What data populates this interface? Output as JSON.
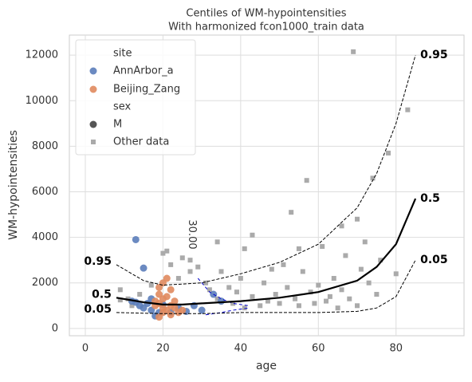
{
  "chart_data": {
    "type": "scatter",
    "title": "Centiles of WM-hypointensities",
    "subtitle": "With harmonized fcon1000_train data",
    "x_label": "age",
    "y_label": "WM-hypointensities",
    "xlim": [
      -4.1,
      97.5
    ],
    "ylim": [
      -320,
      12880
    ],
    "xticks": [
      0,
      20,
      40,
      60,
      80
    ],
    "yticks": [
      0,
      2000,
      4000,
      6000,
      8000,
      10000,
      12000
    ],
    "grid": true,
    "legend": {
      "position": "upper left",
      "site_title": "site",
      "sex_title": "sex",
      "sex_item": "M",
      "sex_color": "#555555"
    },
    "series": [
      {
        "name": "Other data",
        "color": "#aaaaaa",
        "marker": "square",
        "x": [
          9,
          9,
          11,
          12,
          14,
          17,
          20,
          21,
          22,
          24,
          25,
          27,
          27,
          29,
          31,
          32,
          34,
          34,
          35,
          37,
          38,
          39,
          40,
          41,
          41,
          43,
          43,
          45,
          46,
          47,
          48,
          49,
          50,
          51,
          52,
          53,
          54,
          55,
          56,
          57,
          58,
          59,
          60,
          61,
          62,
          63,
          64,
          65,
          66,
          67,
          68,
          69,
          70,
          70,
          71,
          72,
          73,
          74,
          75,
          76,
          78,
          80,
          83,
          55,
          66
        ],
        "values": [
          1250,
          1700,
          1300,
          1000,
          1500,
          1900,
          3300,
          3400,
          2800,
          2200,
          3100,
          3000,
          2500,
          2700,
          2000,
          1700,
          1300,
          3800,
          2500,
          1800,
          1100,
          1600,
          2200,
          900,
          3500,
          1400,
          4100,
          1000,
          2000,
          1200,
          2600,
          1500,
          1100,
          2800,
          1800,
          5100,
          1300,
          1000,
          2500,
          6500,
          1600,
          1100,
          1900,
          3600,
          1200,
          1400,
          2200,
          900,
          1700,
          3200,
          1300,
          12150,
          4800,
          1000,
          2600,
          3800,
          2000,
          6600,
          1500,
          3000,
          7700,
          2400,
          9600,
          3500,
          4500
        ]
      },
      {
        "name": "AnnArbor_a",
        "color": "#5b7dba",
        "marker": "circle",
        "x": [
          13,
          15,
          13,
          14,
          15,
          16,
          17,
          18,
          19,
          20,
          22,
          24,
          26,
          28,
          30,
          33,
          35,
          12,
          17
        ],
        "values": [
          3900,
          2650,
          1150,
          1000,
          900,
          1100,
          800,
          550,
          700,
          1050,
          700,
          900,
          750,
          1000,
          800,
          1500,
          1200,
          1200,
          1300
        ]
      },
      {
        "name": "Beijing_Zang",
        "color": "#e08a5e",
        "marker": "circle",
        "x": [
          18,
          19,
          19,
          20,
          20,
          21,
          21,
          22,
          22,
          23,
          19,
          20,
          21,
          18,
          24,
          22,
          20,
          23,
          19,
          25
        ],
        "values": [
          1200,
          1500,
          1800,
          2000,
          900,
          2200,
          1400,
          1000,
          600,
          1200,
          500,
          700,
          800,
          1000,
          700,
          1700,
          1300,
          900,
          1100,
          800
        ]
      }
    ],
    "lines": [
      {
        "label": "0.95",
        "color": "#000000",
        "dash": true,
        "x": [
          8,
          15,
          20,
          30,
          40,
          50,
          60,
          70,
          75,
          80,
          85
        ],
        "values": [
          2800,
          2100,
          1900,
          2000,
          2400,
          2900,
          3700,
          5300,
          6800,
          9000,
          12000
        ]
      },
      {
        "label": "0.5",
        "color": "#000000",
        "dash": false,
        "x": [
          8,
          15,
          20,
          25,
          30,
          40,
          50,
          60,
          70,
          75,
          80,
          85
        ],
        "values": [
          1350,
          1150,
          1050,
          1050,
          1100,
          1200,
          1350,
          1600,
          2100,
          2700,
          3700,
          5700
        ]
      },
      {
        "label": "0.05",
        "color": "#000000",
        "dash": true,
        "x": [
          8,
          20,
          30,
          40,
          50,
          60,
          70,
          75,
          80,
          85
        ],
        "values": [
          700,
          650,
          650,
          700,
          700,
          700,
          750,
          900,
          1400,
          3000
        ]
      }
    ],
    "contour": {
      "label": "30.00",
      "color": "#0000cc",
      "x": [
        29,
        32,
        35,
        38,
        42
      ],
      "values": [
        2200,
        1600,
        1300,
        1100,
        1000
      ],
      "x2": [
        31,
        35,
        38,
        42
      ],
      "values2": [
        600,
        700,
        800,
        900
      ]
    }
  }
}
